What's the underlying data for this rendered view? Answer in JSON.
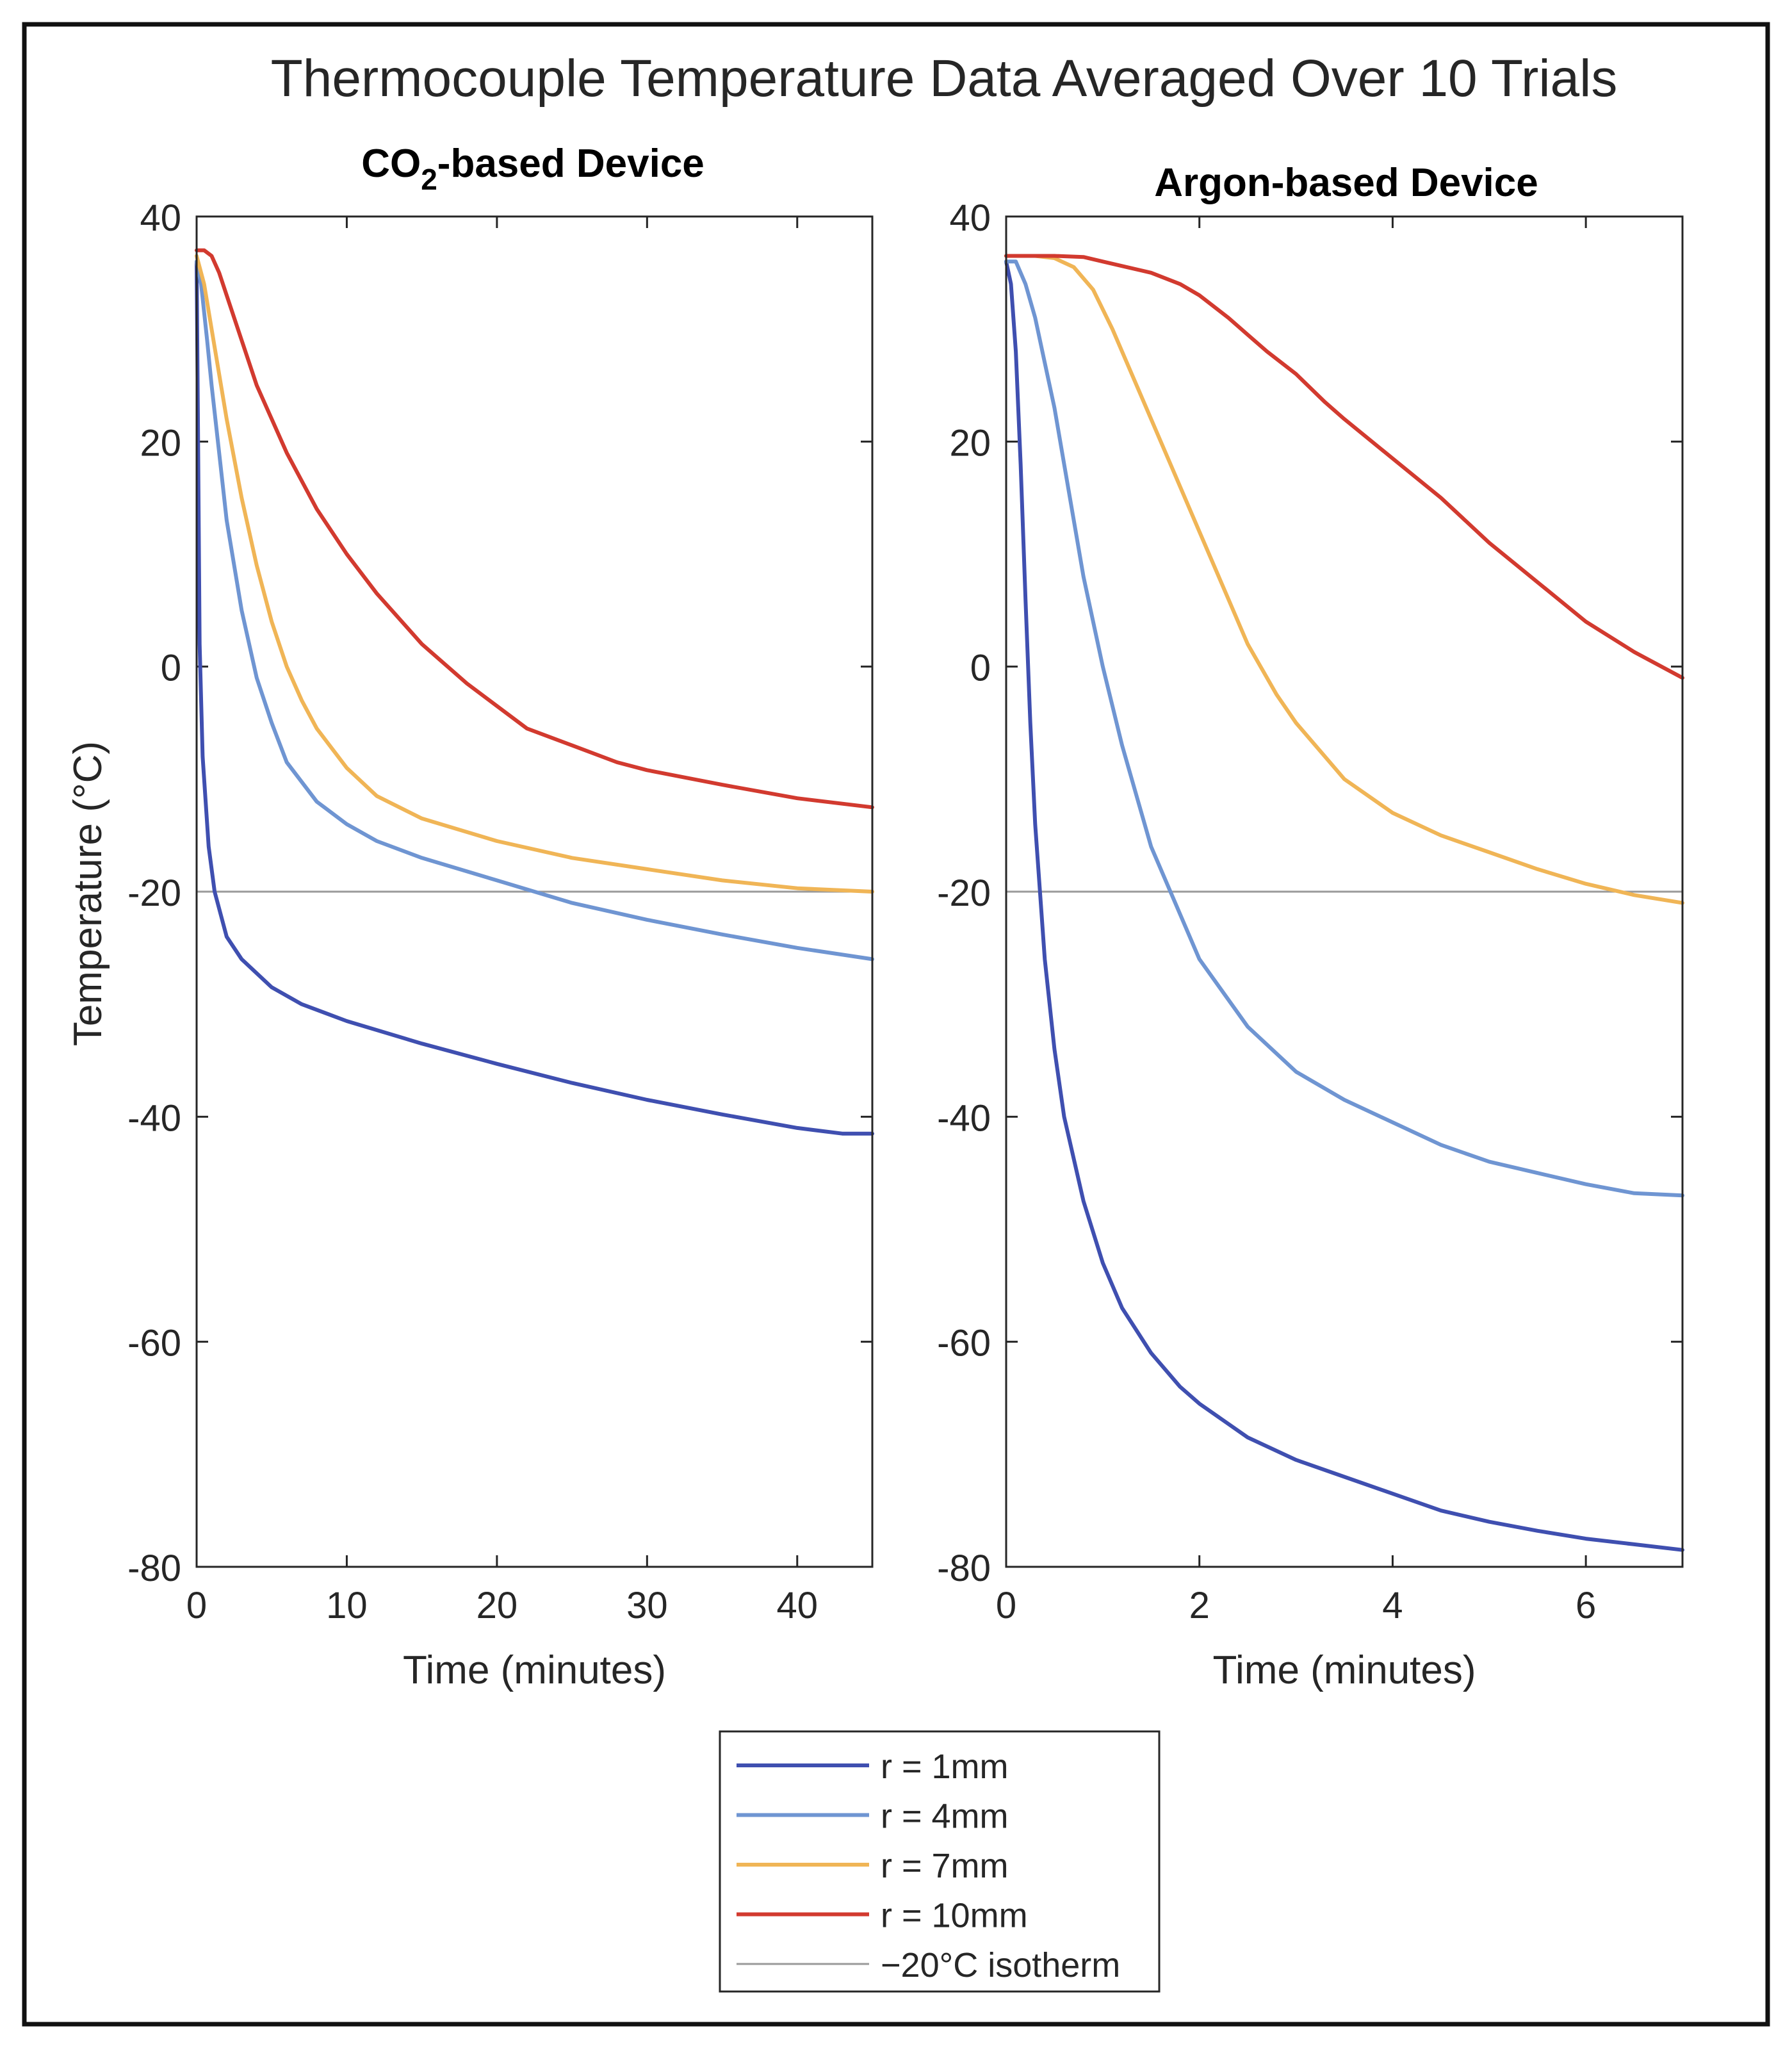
{
  "figure_title": "Thermocouple Temperature Data Averaged Over 10 Trials",
  "y_axis_label": "Temperature (°C)",
  "legend": {
    "entries": [
      {
        "label": "r = 1mm",
        "color": "#3f4fb0"
      },
      {
        "label": "r = 4mm",
        "color": "#6f95d2"
      },
      {
        "label": "r = 7mm",
        "color": "#f0b556"
      },
      {
        "label": "r = 10mm",
        "color": "#d23a2f"
      },
      {
        "label": "−20°C isotherm",
        "color": "#9a9a9a"
      }
    ]
  },
  "chart_data": [
    {
      "type": "line",
      "title": {
        "main": "CO",
        "sub": "2",
        "rest": "-based Device"
      },
      "xlabel": "Time (minutes)",
      "ylabel": "Temperature (°C)",
      "xlim": [
        0,
        45
      ],
      "ylim": [
        -80,
        40
      ],
      "xticks": [
        0,
        10,
        20,
        30,
        40
      ],
      "yticks": [
        40,
        20,
        0,
        -20,
        -40,
        -60,
        -80
      ],
      "reference_line": {
        "name": "−20°C isotherm",
        "y": -20,
        "color": "#9a9a9a"
      },
      "series": [
        {
          "name": "r = 1mm",
          "color": "#3f4fb0",
          "x": [
            0,
            0.1,
            0.2,
            0.4,
            0.8,
            1.2,
            2,
            3,
            5,
            7,
            10,
            15,
            20,
            25,
            30,
            35,
            40,
            43,
            45
          ],
          "y": [
            36,
            20,
            2,
            -8,
            -16,
            -20,
            -24,
            -26,
            -28.5,
            -30,
            -31.5,
            -33.5,
            -35.3,
            -37,
            -38.5,
            -39.8,
            -41,
            -41.5,
            -41.5
          ]
        },
        {
          "name": "r = 4mm",
          "color": "#6f95d2",
          "x": [
            0,
            0.3,
            0.7,
            1,
            1.5,
            2,
            3,
            4,
            5,
            6,
            8,
            10,
            12,
            15,
            20,
            25,
            30,
            35,
            40,
            45
          ],
          "y": [
            36,
            34,
            29,
            25,
            19,
            13,
            5,
            -1,
            -5,
            -8.5,
            -12,
            -14,
            -15.5,
            -17,
            -19,
            -21,
            -22.5,
            -23.8,
            -25,
            -26
          ]
        },
        {
          "name": "r = 7mm",
          "color": "#f0b556",
          "x": [
            0,
            0.5,
            1,
            2,
            3,
            4,
            5,
            6,
            7,
            8,
            10,
            12,
            15,
            20,
            25,
            30,
            35,
            40,
            45
          ],
          "y": [
            36.5,
            34,
            30,
            22,
            15,
            9,
            4,
            0,
            -3,
            -5.5,
            -9,
            -11.5,
            -13.5,
            -15.5,
            -17,
            -18,
            -19,
            -19.7,
            -20
          ]
        },
        {
          "name": "r = 10mm",
          "color": "#d23a2f",
          "x": [
            0,
            0.5,
            1,
            1.5,
            2,
            3,
            4,
            6,
            8,
            10,
            12,
            15,
            18,
            20,
            22,
            25,
            28,
            30,
            35,
            40,
            45
          ],
          "y": [
            37,
            37,
            36.5,
            35,
            33,
            29,
            25,
            19,
            14,
            10,
            6.5,
            2,
            -1.5,
            -3.5,
            -5.5,
            -7,
            -8.5,
            -9.2,
            -10.5,
            -11.7,
            -12.5
          ]
        }
      ]
    },
    {
      "type": "line",
      "title": {
        "main": "Argon-based Device",
        "sub": "",
        "rest": ""
      },
      "xlabel": "Time (minutes)",
      "ylabel": "",
      "xlim": [
        0,
        7
      ],
      "ylim": [
        -80,
        40
      ],
      "xticks": [
        0,
        2,
        4,
        6
      ],
      "yticks": [
        40,
        20,
        0,
        -20,
        -40,
        -60,
        -80
      ],
      "reference_line": {
        "name": "−20°C isotherm",
        "y": -20,
        "color": "#9a9a9a"
      },
      "series": [
        {
          "name": "r = 1mm",
          "color": "#3f4fb0",
          "x": [
            0,
            0.05,
            0.1,
            0.15,
            0.2,
            0.25,
            0.3,
            0.4,
            0.5,
            0.6,
            0.8,
            1.0,
            1.2,
            1.5,
            1.8,
            2.0,
            2.5,
            3.0,
            3.5,
            4.0,
            4.5,
            5.0,
            5.5,
            6.0,
            6.5,
            7.0
          ],
          "y": [
            36,
            34,
            28,
            18,
            6,
            -5,
            -14,
            -26,
            -34,
            -40,
            -47.5,
            -53,
            -57,
            -61,
            -64,
            -65.5,
            -68.5,
            -70.5,
            -72,
            -73.5,
            -75,
            -76,
            -76.8,
            -77.5,
            -78,
            -78.5
          ]
        },
        {
          "name": "r = 4mm",
          "color": "#6f95d2",
          "x": [
            0,
            0.1,
            0.2,
            0.3,
            0.4,
            0.5,
            0.6,
            0.7,
            0.8,
            1.0,
            1.2,
            1.5,
            2.0,
            2.5,
            3.0,
            3.5,
            4.0,
            4.5,
            5.0,
            5.5,
            6.0,
            6.5,
            7.0
          ],
          "y": [
            36,
            36,
            34,
            31,
            27,
            23,
            18,
            13,
            8,
            0,
            -7,
            -16,
            -26,
            -32,
            -36,
            -38.5,
            -40.5,
            -42.5,
            -44,
            -45,
            -46,
            -46.8,
            -47
          ]
        },
        {
          "name": "r = 7mm",
          "color": "#f0b556",
          "x": [
            0,
            0.3,
            0.5,
            0.7,
            0.9,
            1.1,
            1.3,
            1.5,
            1.7,
            2.0,
            2.3,
            2.5,
            2.8,
            3.0,
            3.5,
            4.0,
            4.5,
            5.0,
            5.5,
            6.0,
            6.5,
            7.0
          ],
          "y": [
            36.5,
            36.5,
            36.3,
            35.5,
            33.5,
            30,
            26,
            22,
            18,
            12,
            6,
            2,
            -2.5,
            -5,
            -10,
            -13,
            -15,
            -16.5,
            -18,
            -19.3,
            -20.3,
            -21
          ]
        },
        {
          "name": "r = 10mm",
          "color": "#d23a2f",
          "x": [
            0,
            0.5,
            0.8,
            1.0,
            1.2,
            1.5,
            1.8,
            2.0,
            2.3,
            2.5,
            2.7,
            3.0,
            3.3,
            3.5,
            4.0,
            4.5,
            5.0,
            5.5,
            6.0,
            6.5,
            7.0
          ],
          "y": [
            36.5,
            36.5,
            36.4,
            36,
            35.6,
            35,
            34,
            33,
            31,
            29.5,
            28,
            26,
            23.5,
            22,
            18.5,
            15,
            11,
            7.5,
            4,
            1.3,
            -1
          ]
        }
      ]
    }
  ]
}
